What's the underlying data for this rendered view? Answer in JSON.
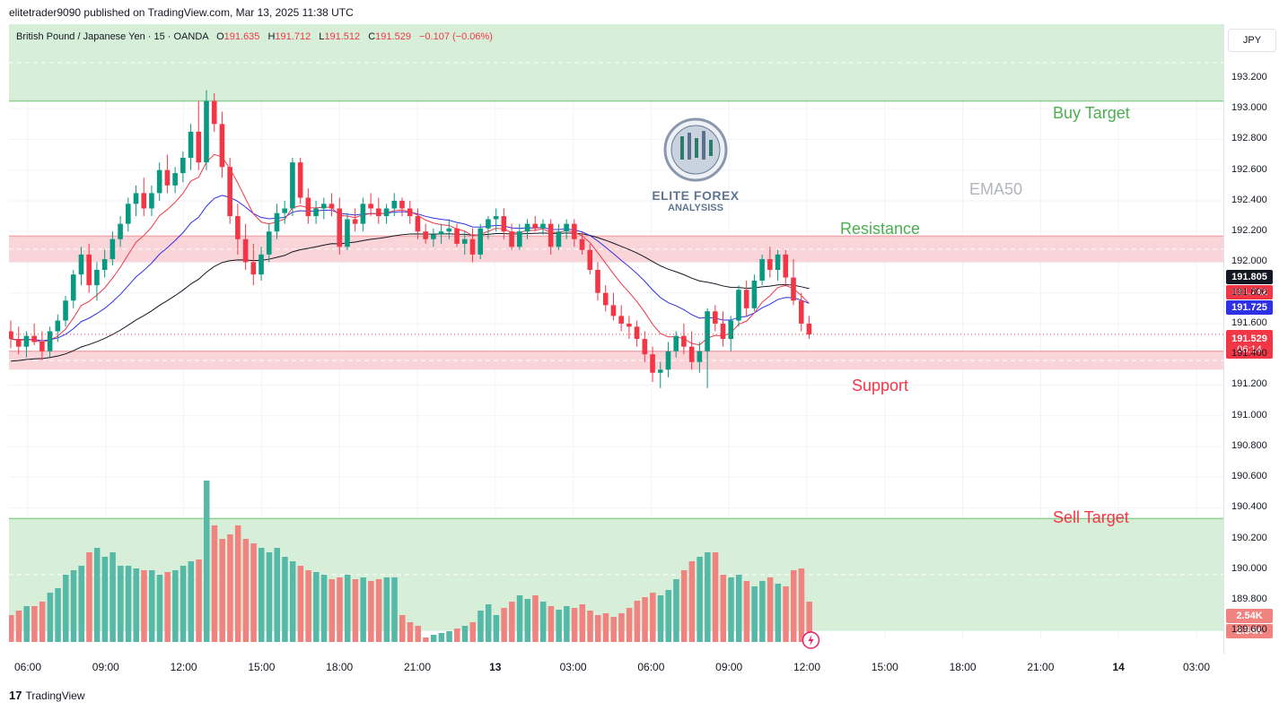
{
  "header": {
    "published_text": "elitetrader9090 published on TradingView.com, Mar 13, 2025 11:38 UTC"
  },
  "legend": {
    "symbol": "British Pound / Japanese Yen · 15 · OANDA",
    "o_label": "O",
    "o": "191.635",
    "h_label": "H",
    "h": "191.712",
    "l_label": "L",
    "l": "191.512",
    "c_label": "C",
    "c": "191.529",
    "change": "−0.107 (−0.06%)"
  },
  "currency": "JPY",
  "footer": {
    "logo_text": "TradingView",
    "logo_mark": "17"
  },
  "watermark": {
    "line1": "ELITE FOREX",
    "line2": "ANALYSISS"
  },
  "annotations": {
    "buy_target": "Buy Target",
    "ema50": "EMA50",
    "resistance": "Resistance",
    "support": "Support",
    "sell_target": "Sell Target"
  },
  "price_labels": {
    "ema50": "191.805",
    "ema_fast": "191.742",
    "ema_mid": "191.725",
    "last": "191.529",
    "countdown": "06:14",
    "vol_a": "2.54K",
    "vol_b": "2.54K"
  },
  "colors": {
    "up": "#089981",
    "down": "#f23645",
    "up_vol": "#56b8a7",
    "down_vol": "#f0837f",
    "zone_green": "#d7efd9",
    "zone_pink": "#f9d4d8",
    "ema50": "#131722",
    "ema_fast": "#f23645",
    "ema_mid": "#2f2fe6",
    "buy_text": "#4caf50",
    "sell_text": "#f23645"
  },
  "chart_data": {
    "type": "candlestick",
    "title": "British Pound / Japanese Yen · 15 · OANDA",
    "y_ticks": [
      "193.200",
      "193.000",
      "192.800",
      "192.600",
      "192.400",
      "192.200",
      "192.000",
      "191.800",
      "191.600",
      "191.400",
      "191.200",
      "191.000",
      "190.800",
      "190.600",
      "190.400",
      "190.200",
      "190.000",
      "189.800",
      "189.600"
    ],
    "ylim": [
      189.55,
      193.55
    ],
    "x_ticks": [
      "06:00",
      "09:00",
      "12:00",
      "15:00",
      "18:00",
      "21:00",
      "13",
      "03:00",
      "06:00",
      "09:00",
      "12:00",
      "15:00",
      "18:00",
      "21:00",
      "14",
      "03:00"
    ],
    "zones": [
      {
        "name": "buy_target",
        "from": 193.05,
        "to": 193.55,
        "color": "green"
      },
      {
        "name": "resistance",
        "from": 192.0,
        "to": 192.17,
        "color": "pink"
      },
      {
        "name": "support",
        "from": 191.3,
        "to": 191.42,
        "color": "pink"
      },
      {
        "name": "sell_target",
        "from": 189.6,
        "to": 190.33,
        "color": "green"
      }
    ],
    "ohlc": [
      [
        191.55,
        191.62,
        191.44,
        191.5
      ],
      [
        191.5,
        191.58,
        191.4,
        191.45
      ],
      [
        191.45,
        191.55,
        191.38,
        191.52
      ],
      [
        191.52,
        191.6,
        191.46,
        191.48
      ],
      [
        191.48,
        191.55,
        191.36,
        191.42
      ],
      [
        191.42,
        191.58,
        191.38,
        191.55
      ],
      [
        191.55,
        191.66,
        191.48,
        191.62
      ],
      [
        191.62,
        191.78,
        191.58,
        191.75
      ],
      [
        191.75,
        191.95,
        191.7,
        191.92
      ],
      [
        191.92,
        192.1,
        191.85,
        192.05
      ],
      [
        192.05,
        192.12,
        191.8,
        191.85
      ],
      [
        191.85,
        192.0,
        191.75,
        191.95
      ],
      [
        191.95,
        192.08,
        191.9,
        192.02
      ],
      [
        192.02,
        192.2,
        191.98,
        192.15
      ],
      [
        192.15,
        192.3,
        192.1,
        192.25
      ],
      [
        192.25,
        192.42,
        192.2,
        192.38
      ],
      [
        192.38,
        192.5,
        192.3,
        192.45
      ],
      [
        192.45,
        192.55,
        192.3,
        192.35
      ],
      [
        192.35,
        192.5,
        192.3,
        192.45
      ],
      [
        192.45,
        192.65,
        192.4,
        192.6
      ],
      [
        192.6,
        192.7,
        192.45,
        192.5
      ],
      [
        192.5,
        192.62,
        192.45,
        192.58
      ],
      [
        192.58,
        192.72,
        192.52,
        192.68
      ],
      [
        192.68,
        192.9,
        192.6,
        192.85
      ],
      [
        192.85,
        193.05,
        192.6,
        192.65
      ],
      [
        192.65,
        193.12,
        192.6,
        193.05
      ],
      [
        193.05,
        193.1,
        192.85,
        192.9
      ],
      [
        192.9,
        192.98,
        192.55,
        192.62
      ],
      [
        192.62,
        192.68,
        192.25,
        192.3
      ],
      [
        192.3,
        192.38,
        192.05,
        192.15
      ],
      [
        192.15,
        192.25,
        191.95,
        192.0
      ],
      [
        192.0,
        192.12,
        191.85,
        191.92
      ],
      [
        191.92,
        192.1,
        191.88,
        192.05
      ],
      [
        192.05,
        192.25,
        192.0,
        192.2
      ],
      [
        192.2,
        192.38,
        192.15,
        192.32
      ],
      [
        192.32,
        192.4,
        192.25,
        192.35
      ],
      [
        192.35,
        192.68,
        192.3,
        192.65
      ],
      [
        192.65,
        192.68,
        192.38,
        192.42
      ],
      [
        192.42,
        192.48,
        192.25,
        192.3
      ],
      [
        192.3,
        192.4,
        192.25,
        192.35
      ],
      [
        192.35,
        192.42,
        192.28,
        192.38
      ],
      [
        192.38,
        192.45,
        192.3,
        192.35
      ],
      [
        192.35,
        192.42,
        192.05,
        192.1
      ],
      [
        192.1,
        192.32,
        192.08,
        192.28
      ],
      [
        192.28,
        192.35,
        192.2,
        192.25
      ],
      [
        192.25,
        192.42,
        192.2,
        192.38
      ],
      [
        192.38,
        192.45,
        192.3,
        192.35
      ],
      [
        192.35,
        192.42,
        192.25,
        192.3
      ],
      [
        192.3,
        192.38,
        192.25,
        192.35
      ],
      [
        192.35,
        192.45,
        192.3,
        192.4
      ],
      [
        192.4,
        192.42,
        192.3,
        192.35
      ],
      [
        192.35,
        192.4,
        192.25,
        192.3
      ],
      [
        192.3,
        192.35,
        192.15,
        192.2
      ],
      [
        192.2,
        192.25,
        192.12,
        192.15
      ],
      [
        192.15,
        192.22,
        192.1,
        192.18
      ],
      [
        192.18,
        192.25,
        192.12,
        192.2
      ],
      [
        192.2,
        192.28,
        192.15,
        192.22
      ],
      [
        192.22,
        192.25,
        192.1,
        192.12
      ],
      [
        192.12,
        192.2,
        192.05,
        192.15
      ],
      [
        192.15,
        192.22,
        192.0,
        192.05
      ],
      [
        192.05,
        192.25,
        192.02,
        192.22
      ],
      [
        192.22,
        192.3,
        192.15,
        192.28
      ],
      [
        192.28,
        192.35,
        192.2,
        192.3
      ],
      [
        192.3,
        192.35,
        192.15,
        192.2
      ],
      [
        192.2,
        192.25,
        192.08,
        192.1
      ],
      [
        192.1,
        192.25,
        192.08,
        192.2
      ],
      [
        192.2,
        192.28,
        192.15,
        192.25
      ],
      [
        192.25,
        192.3,
        192.2,
        192.22
      ],
      [
        192.22,
        192.28,
        192.18,
        192.25
      ],
      [
        192.25,
        192.28,
        192.05,
        192.1
      ],
      [
        192.1,
        192.25,
        192.08,
        192.2
      ],
      [
        192.2,
        192.28,
        192.15,
        192.25
      ],
      [
        192.25,
        192.28,
        192.1,
        192.15
      ],
      [
        192.15,
        192.2,
        192.05,
        192.08
      ],
      [
        192.08,
        192.12,
        191.92,
        191.95
      ],
      [
        191.95,
        192.0,
        191.75,
        191.8
      ],
      [
        191.8,
        191.85,
        191.68,
        191.72
      ],
      [
        191.72,
        191.8,
        191.62,
        191.65
      ],
      [
        191.65,
        191.72,
        191.55,
        191.6
      ],
      [
        191.6,
        191.65,
        191.5,
        191.58
      ],
      [
        191.58,
        191.62,
        191.45,
        191.5
      ],
      [
        191.5,
        191.55,
        191.35,
        191.4
      ],
      [
        191.4,
        191.45,
        191.22,
        191.28
      ],
      [
        191.28,
        191.35,
        191.18,
        191.3
      ],
      [
        191.3,
        191.48,
        191.25,
        191.42
      ],
      [
        191.42,
        191.55,
        191.38,
        191.52
      ],
      [
        191.52,
        191.6,
        191.4,
        191.45
      ],
      [
        191.45,
        191.55,
        191.3,
        191.35
      ],
      [
        191.35,
        191.48,
        191.28,
        191.42
      ],
      [
        191.42,
        191.7,
        191.18,
        191.68
      ],
      [
        191.68,
        191.72,
        191.55,
        191.6
      ],
      [
        191.6,
        191.68,
        191.45,
        191.5
      ],
      [
        191.5,
        191.65,
        191.42,
        191.62
      ],
      [
        191.62,
        191.85,
        191.58,
        191.82
      ],
      [
        191.82,
        191.88,
        191.65,
        191.7
      ],
      [
        191.7,
        191.92,
        191.68,
        191.88
      ],
      [
        191.88,
        192.05,
        191.85,
        192.02
      ],
      [
        192.02,
        192.1,
        191.9,
        191.95
      ],
      [
        191.95,
        192.08,
        191.88,
        192.05
      ],
      [
        192.05,
        192.08,
        191.85,
        191.9
      ],
      [
        191.9,
        192.02,
        191.72,
        191.75
      ],
      [
        191.75,
        191.8,
        191.55,
        191.6
      ],
      [
        191.6,
        191.65,
        191.5,
        191.53
      ]
    ],
    "volume": [
      0.3,
      0.35,
      0.4,
      0.4,
      0.45,
      0.55,
      0.6,
      0.75,
      0.8,
      0.85,
      1.0,
      1.05,
      0.95,
      1.0,
      0.85,
      0.85,
      0.82,
      0.8,
      0.8,
      0.75,
      0.78,
      0.8,
      0.85,
      0.9,
      0.92,
      1.8,
      1.3,
      1.15,
      1.2,
      1.3,
      1.15,
      1.1,
      1.05,
      1.0,
      1.05,
      0.95,
      0.9,
      0.85,
      0.8,
      0.78,
      0.75,
      0.7,
      0.72,
      0.75,
      0.7,
      0.72,
      0.68,
      0.7,
      0.72,
      0.72,
      0.3,
      0.22,
      0.18,
      0.05,
      0.08,
      0.1,
      0.12,
      0.15,
      0.18,
      0.22,
      0.35,
      0.42,
      0.3,
      0.38,
      0.45,
      0.52,
      0.48,
      0.52,
      0.45,
      0.4,
      0.36,
      0.4,
      0.38,
      0.42,
      0.35,
      0.3,
      0.32,
      0.28,
      0.32,
      0.38,
      0.46,
      0.5,
      0.55,
      0.52,
      0.58,
      0.7,
      0.8,
      0.9,
      0.95,
      1.0,
      1.0,
      0.75,
      0.72,
      0.75,
      0.68,
      0.62,
      0.68,
      0.72,
      0.65,
      0.62,
      0.8,
      0.82,
      0.45
    ]
  }
}
